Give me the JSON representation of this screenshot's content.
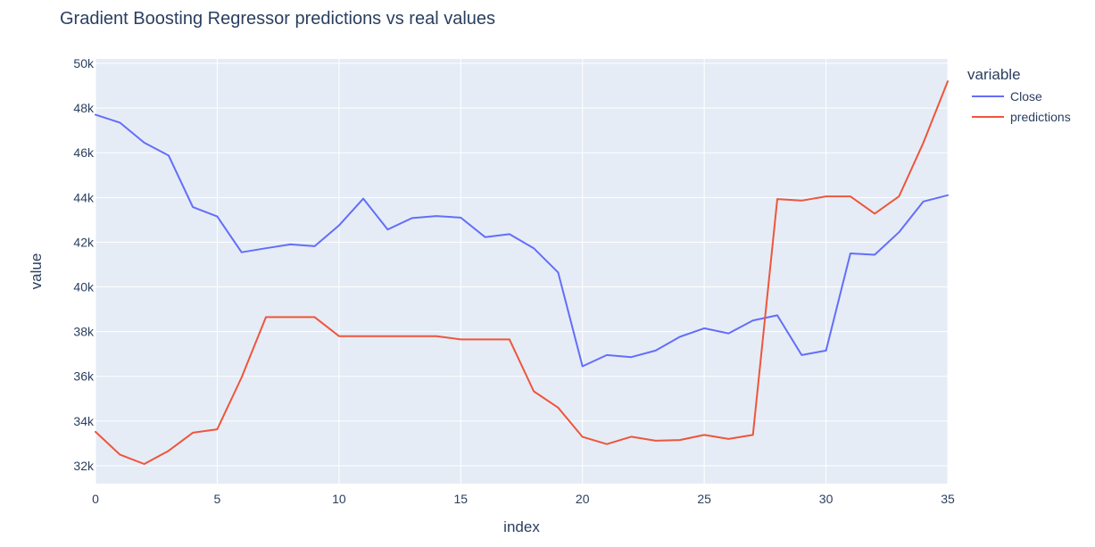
{
  "chart_data": {
    "type": "line",
    "title": "Gradient Boosting Regressor predictions vs real values",
    "xlabel": "index",
    "ylabel": "value",
    "xlim": [
      0,
      35
    ],
    "ylim": [
      31200,
      50200
    ],
    "x_ticks": [
      0,
      5,
      10,
      15,
      20,
      25,
      30,
      35
    ],
    "x_tick_labels": [
      "0",
      "5",
      "10",
      "15",
      "20",
      "25",
      "30",
      "35"
    ],
    "y_ticks": [
      32000,
      34000,
      36000,
      38000,
      40000,
      42000,
      44000,
      46000,
      48000,
      50000
    ],
    "y_tick_labels": [
      "32k",
      "34k",
      "36k",
      "38k",
      "40k",
      "42k",
      "44k",
      "46k",
      "48k",
      "50k"
    ],
    "grid": true,
    "legend_title": "variable",
    "legend_position": "right",
    "x": [
      0,
      1,
      2,
      3,
      4,
      5,
      6,
      7,
      8,
      9,
      10,
      11,
      12,
      13,
      14,
      15,
      16,
      17,
      18,
      19,
      20,
      21,
      22,
      23,
      24,
      25,
      26,
      27,
      28,
      29,
      30,
      31,
      32,
      33,
      34,
      35
    ],
    "series": [
      {
        "name": "Close",
        "color": "#636efa",
        "values": [
          47700,
          47350,
          46450,
          45880,
          43570,
          43150,
          41550,
          41730,
          41900,
          41820,
          42750,
          43950,
          42570,
          43080,
          43170,
          43100,
          42230,
          42360,
          41730,
          40650,
          36450,
          36950,
          36860,
          37150,
          37770,
          38150,
          37920,
          38500,
          38730,
          36950,
          37150,
          41500,
          41440,
          42450,
          43820,
          44100
        ]
      },
      {
        "name": "predictions",
        "color": "#ef553b",
        "values": [
          33520,
          32500,
          32080,
          32670,
          33480,
          33630,
          35950,
          38650,
          38650,
          38650,
          37800,
          37800,
          37800,
          37800,
          37800,
          37650,
          37650,
          37650,
          35330,
          34600,
          33290,
          32970,
          33300,
          33120,
          33150,
          33380,
          33200,
          33380,
          43930,
          43860,
          44050,
          44050,
          43280,
          44050,
          46450,
          49200
        ]
      }
    ]
  }
}
